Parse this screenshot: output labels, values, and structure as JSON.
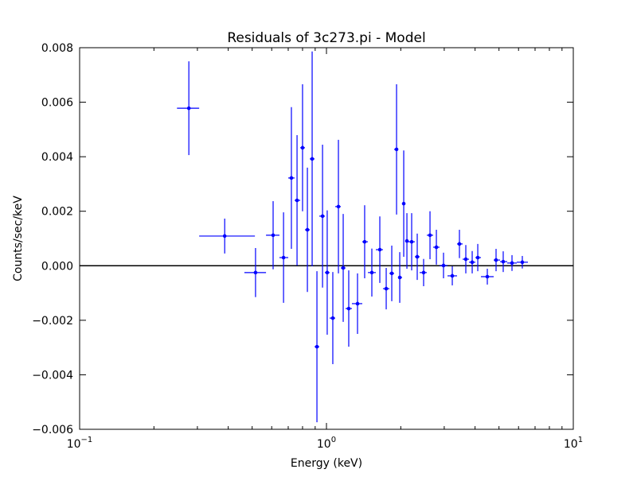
{
  "chart_data": {
    "type": "errorbar",
    "title": "Residuals of 3c273.pi - Model",
    "xlabel": "Energy (keV)",
    "ylabel": "Counts/sec/keV",
    "xscale": "log",
    "xlim": [
      0.1,
      10
    ],
    "xticks": [
      {
        "value": 0.1,
        "label": "10",
        "exponent": "−1"
      },
      {
        "value": 1,
        "label": "10",
        "exponent": "0"
      },
      {
        "value": 10,
        "label": "10",
        "exponent": "1"
      }
    ],
    "minor_xticks": [
      0.2,
      0.3,
      0.4,
      0.5,
      0.6,
      0.7,
      0.8,
      0.9,
      2,
      3,
      4,
      5,
      6,
      7,
      8,
      9
    ],
    "ylim": [
      -0.006,
      0.008
    ],
    "yticks": [
      {
        "value": -0.006,
        "label": "−0.006"
      },
      {
        "value": -0.004,
        "label": "−0.004"
      },
      {
        "value": -0.002,
        "label": "−0.002"
      },
      {
        "value": 0,
        "label": "0.000"
      },
      {
        "value": 0.002,
        "label": "0.002"
      },
      {
        "value": 0.004,
        "label": "0.004"
      },
      {
        "value": 0.006,
        "label": "0.006"
      },
      {
        "value": 0.008,
        "label": "0.008"
      }
    ],
    "hline": 0,
    "color": "#0000ff",
    "x": [
      0.277,
      0.387,
      0.516,
      0.608,
      0.67,
      0.721,
      0.76,
      0.8,
      0.837,
      0.875,
      0.915,
      0.964,
      1.007,
      1.061,
      1.118,
      1.169,
      1.231,
      1.336,
      1.428,
      1.527,
      1.645,
      1.746,
      1.839,
      1.923,
      1.981,
      2.056,
      2.118,
      2.214,
      2.332,
      2.475,
      2.627,
      2.788,
      2.98,
      3.234,
      3.457,
      3.669,
      3.894,
      4.102,
      4.484,
      4.865,
      5.201,
      5.645,
      6.215
    ],
    "xlo": [
      0.248,
      0.305,
      0.465,
      0.569,
      0.645,
      0.7,
      0.743,
      0.783,
      0.818,
      0.856,
      0.895,
      0.935,
      0.985,
      1.03,
      1.085,
      1.143,
      1.195,
      1.268,
      1.397,
      1.472,
      1.585,
      1.694,
      1.798,
      1.88,
      1.951,
      2.025,
      2.086,
      2.149,
      2.281,
      2.385,
      2.55,
      2.706,
      2.872,
      3.093,
      3.381,
      3.562,
      3.78,
      4.012,
      4.226,
      4.758,
      5.049,
      5.4,
      5.902
    ],
    "xhi": [
      0.305,
      0.513,
      0.569,
      0.645,
      0.7,
      0.743,
      0.783,
      0.818,
      0.856,
      0.895,
      0.935,
      0.985,
      1.03,
      1.085,
      1.143,
      1.195,
      1.268,
      1.397,
      1.472,
      1.585,
      1.694,
      1.798,
      1.88,
      1.951,
      2.025,
      2.086,
      2.149,
      2.281,
      2.385,
      2.55,
      2.706,
      2.872,
      3.093,
      3.381,
      3.562,
      3.78,
      4.012,
      4.226,
      4.758,
      5.049,
      5.4,
      5.902,
      6.548
    ],
    "values": [
      0.00578,
      0.00109,
      -0.00025,
      0.00112,
      0.0003,
      0.00322,
      0.0024,
      0.00433,
      0.00132,
      0.00392,
      -0.00297,
      0.00182,
      -0.00025,
      -0.00192,
      0.00217,
      -8e-05,
      -0.00157,
      -0.00139,
      0.00088,
      -0.00025,
      0.00059,
      -0.00084,
      -0.00028,
      0.00427,
      -0.00043,
      0.00228,
      0.00091,
      0.00088,
      0.00033,
      -0.00025,
      0.00112,
      0.00068,
      1e-05,
      -0.00037,
      0.0008,
      0.00024,
      0.00013,
      0.0003,
      -0.0004,
      0.00021,
      0.00015,
      0.0001,
      0.00013
    ],
    "yerr": [
      0.00172,
      0.00064,
      0.0009,
      0.00125,
      0.00166,
      0.0026,
      0.00239,
      0.00233,
      0.00228,
      0.00394,
      0.00277,
      0.00262,
      0.00228,
      0.00169,
      0.00245,
      0.00198,
      0.0014,
      0.00111,
      0.00134,
      0.00088,
      0.00122,
      0.00076,
      0.00102,
      0.00239,
      0.00093,
      0.00195,
      0.00102,
      0.00105,
      0.00085,
      0.0005,
      0.00088,
      0.00064,
      0.00047,
      0.00035,
      0.00052,
      0.00052,
      0.00041,
      0.0005,
      0.00029,
      0.00041,
      0.00038,
      0.00029,
      0.00023
    ]
  }
}
